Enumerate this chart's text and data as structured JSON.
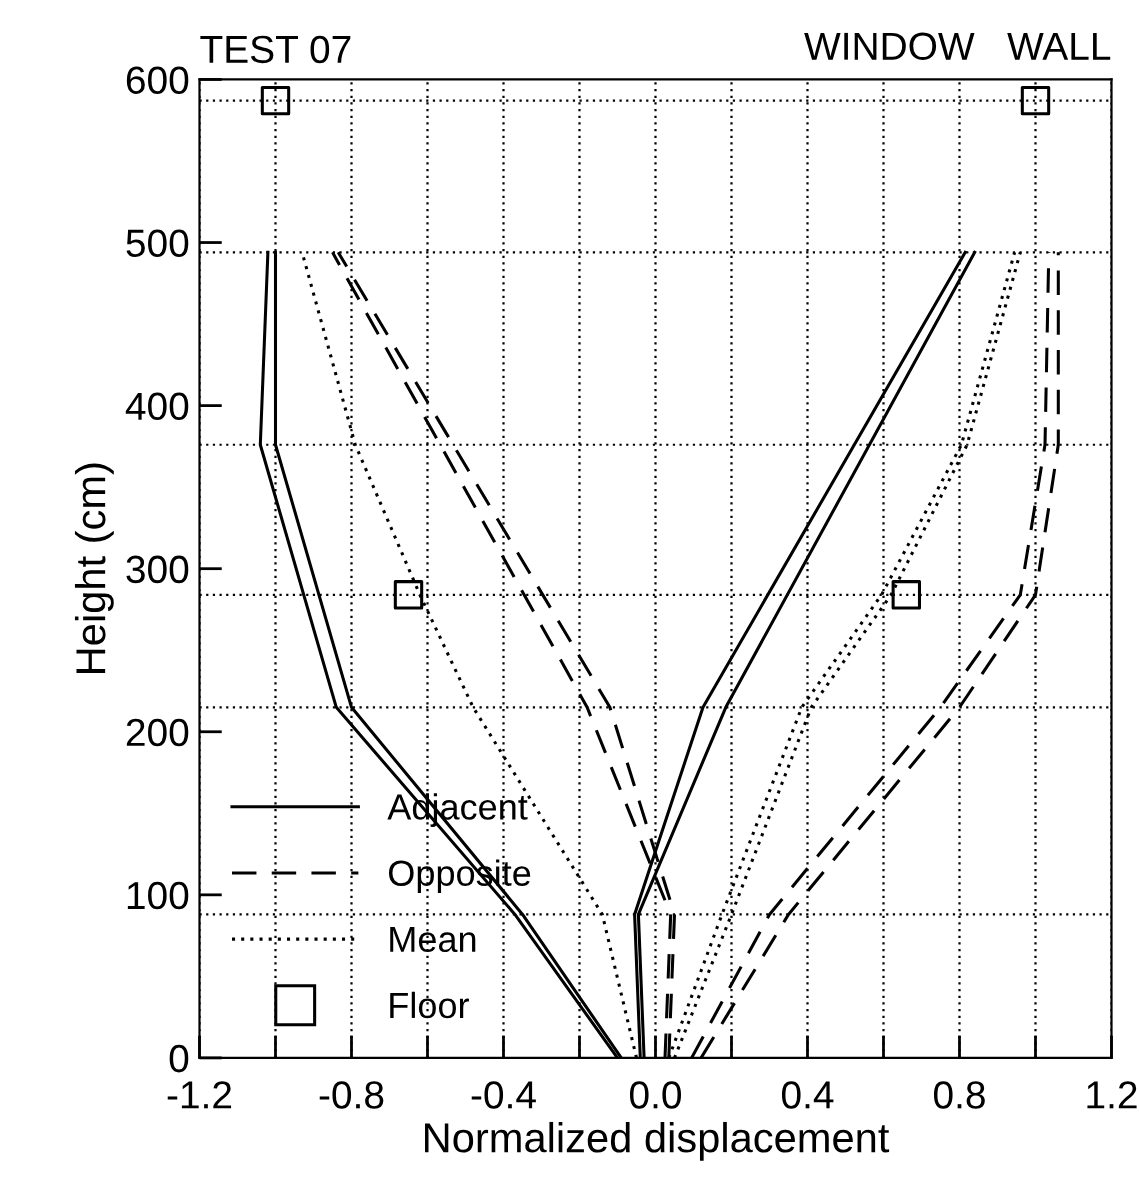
{
  "chart_data": {
    "type": "line",
    "title": "TEST 07",
    "annotations": [
      "WINDOW   WALL"
    ],
    "xlabel": "Normalized displacement",
    "ylabel": "Height (cm)",
    "xlim": [
      -1.2,
      1.2
    ],
    "ylim": [
      0,
      600
    ],
    "xticks": [
      -1.2,
      {
        "value": -1.0,
        "label": null
      },
      -0.8,
      {
        "value": -0.6,
        "label": null
      },
      -0.4,
      {
        "value": -0.2,
        "label": null
      },
      {
        "value": 0,
        "label": "0.0"
      },
      {
        "value": 0.2,
        "label": null
      },
      0.4,
      {
        "value": 0.6,
        "label": null
      },
      0.8,
      {
        "value": 1.0,
        "label": null
      },
      1.2
    ],
    "yticks": [
      0,
      100,
      200,
      300,
      400,
      500,
      600
    ],
    "grid": "x",
    "legend": "bottom left",
    "ref_lines": [
      {
        "axis": "y",
        "value": 88,
        "color": "#000000",
        "line_style": "dotted"
      },
      {
        "axis": "y",
        "value": 215,
        "color": "#000000",
        "line_style": "dotted"
      },
      {
        "axis": "y",
        "value": 284,
        "color": "#000000",
        "line_style": "dotted"
      },
      {
        "axis": "y",
        "value": 376,
        "color": "#000000",
        "line_style": "dotted"
      },
      {
        "axis": "y",
        "value": 494,
        "color": "#000000",
        "line_style": "dotted"
      },
      {
        "axis": "y",
        "value": 587,
        "color": "#000000",
        "line_style": "dotted"
      }
    ],
    "series": [
      {
        "name": "Adjacent",
        "line_style": "solid",
        "marker": "none",
        "color": "#000000",
        "x": [
          -0.1,
          -0.37,
          -0.84,
          -1.04,
          -1.02
        ],
        "values": [
          0,
          88,
          215,
          376,
          494
        ]
      },
      {
        "type": "line",
        "line_style": "solid",
        "marker": "none",
        "color": "#000000",
        "x": [
          -0.09,
          -0.35,
          -0.8,
          -1.0,
          -1.0
        ],
        "values": [
          0,
          88,
          215,
          376,
          494
        ]
      },
      {
        "type": "line",
        "line_style": "solid",
        "marker": "none",
        "color": "#000000",
        "x": [
          -0.04,
          -0.055,
          0.125,
          0.815
        ],
        "values": [
          0,
          88,
          215,
          494
        ]
      },
      {
        "type": "line",
        "line_style": "solid",
        "marker": "none",
        "color": "#000000",
        "x": [
          -0.03,
          -0.045,
          0.185,
          0.84
        ],
        "values": [
          0,
          88,
          215,
          494
        ]
      },
      {
        "name": "Opposite",
        "type": "line",
        "line_style": "dashed",
        "marker": "none",
        "color": "#000000",
        "x": [
          0.025,
          0.04,
          -0.18,
          -0.85
        ],
        "values": [
          0,
          88,
          215,
          494
        ]
      },
      {
        "type": "line",
        "line_style": "dashed",
        "marker": "none",
        "color": "#000000",
        "x": [
          0.035,
          0.05,
          -0.12,
          -0.835
        ],
        "values": [
          0,
          88,
          215,
          494
        ]
      },
      {
        "type": "line",
        "line_style": "dashed",
        "marker": "none",
        "color": "#000000",
        "x": [
          0.095,
          0.3,
          0.75,
          0.96,
          1.025,
          1.035
        ],
        "values": [
          0,
          88,
          215,
          284,
          376,
          494
        ]
      },
      {
        "type": "line",
        "line_style": "dashed",
        "marker": "none",
        "color": "#000000",
        "x": [
          0.12,
          0.35,
          0.8,
          1.0,
          1.06,
          1.06
        ],
        "values": [
          0,
          88,
          215,
          284,
          376,
          494
        ]
      },
      {
        "name": "Mean",
        "type": "line",
        "line_style": "dotted",
        "marker": "none",
        "color": "#000000",
        "x": [
          -0.05,
          -0.14,
          -0.48,
          -0.62,
          -0.79,
          -0.93
        ],
        "values": [
          0,
          88,
          215,
          284,
          376,
          494
        ]
      },
      {
        "type": "line",
        "line_style": "dotted",
        "marker": "none",
        "color": "#000000",
        "x": [
          0.035,
          0.175,
          0.385,
          0.595,
          0.805,
          0.945
        ],
        "values": [
          0,
          88,
          215,
          284,
          376,
          494
        ]
      },
      {
        "type": "line",
        "line_style": "dotted",
        "marker": "none",
        "color": "#000000",
        "x": [
          0.05,
          0.2,
          0.41,
          0.62,
          0.82,
          0.96
        ],
        "values": [
          0,
          88,
          215,
          284,
          376,
          494
        ]
      },
      {
        "name": "Floor",
        "type": "scatter",
        "marker": "square",
        "color": "#000000",
        "x": [
          -1.0,
          -0.65,
          0.66,
          1.0
        ],
        "values": [
          587,
          284,
          284,
          587
        ]
      }
    ]
  }
}
